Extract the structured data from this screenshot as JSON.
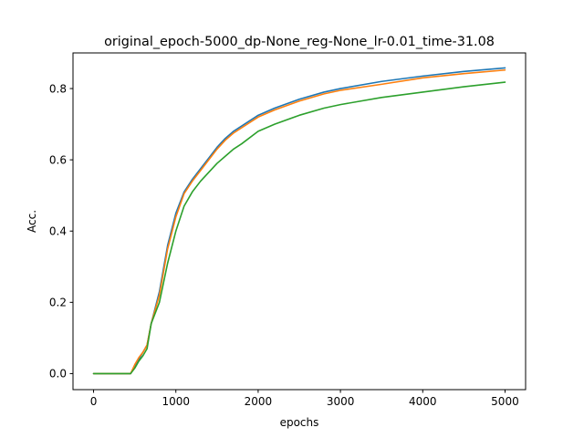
{
  "chart_data": {
    "type": "line",
    "title": "original_epoch-5000_dp-None_reg-None_lr-0.01_time-31.08",
    "xlabel": "epochs",
    "ylabel": "Acc.",
    "xlim": [
      -250,
      5250
    ],
    "ylim": [
      -0.045,
      0.9
    ],
    "xticks": [
      0,
      1000,
      2000,
      3000,
      4000,
      5000
    ],
    "yticks": [
      0.0,
      0.2,
      0.4,
      0.6,
      0.8
    ],
    "xtick_labels": [
      "0",
      "1000",
      "2000",
      "3000",
      "4000",
      "5000"
    ],
    "ytick_labels": [
      "0.0",
      "0.2",
      "0.4",
      "0.6",
      "0.8"
    ],
    "grid": false,
    "legend": null,
    "x": [
      0,
      100,
      200,
      300,
      400,
      450,
      500,
      550,
      600,
      650,
      700,
      800,
      900,
      1000,
      1100,
      1200,
      1300,
      1400,
      1500,
      1600,
      1700,
      1800,
      2000,
      2200,
      2500,
      2800,
      3000,
      3500,
      4000,
      4500,
      5000
    ],
    "series": [
      {
        "name": "series_1",
        "color": "#1f77b4",
        "values": [
          0.0,
          0.0,
          0.0,
          0.0,
          0.0,
          0.0,
          0.02,
          0.04,
          0.06,
          0.08,
          0.14,
          0.23,
          0.36,
          0.45,
          0.51,
          0.545,
          0.575,
          0.605,
          0.635,
          0.66,
          0.68,
          0.695,
          0.725,
          0.745,
          0.77,
          0.79,
          0.8,
          0.82,
          0.835,
          0.848,
          0.858
        ]
      },
      {
        "name": "series_2",
        "color": "#ff7f0e",
        "values": [
          0.0,
          0.0,
          0.0,
          0.0,
          0.0,
          0.0,
          0.025,
          0.045,
          0.06,
          0.08,
          0.14,
          0.22,
          0.35,
          0.44,
          0.505,
          0.54,
          0.57,
          0.6,
          0.63,
          0.655,
          0.675,
          0.69,
          0.72,
          0.74,
          0.765,
          0.785,
          0.795,
          0.812,
          0.83,
          0.842,
          0.852
        ]
      },
      {
        "name": "series_3",
        "color": "#2ca02c",
        "values": [
          0.0,
          0.0,
          0.0,
          0.0,
          0.0,
          0.0,
          0.015,
          0.035,
          0.05,
          0.07,
          0.14,
          0.2,
          0.31,
          0.4,
          0.47,
          0.51,
          0.54,
          0.565,
          0.59,
          0.61,
          0.63,
          0.645,
          0.68,
          0.7,
          0.725,
          0.745,
          0.755,
          0.775,
          0.79,
          0.805,
          0.818
        ]
      }
    ]
  }
}
